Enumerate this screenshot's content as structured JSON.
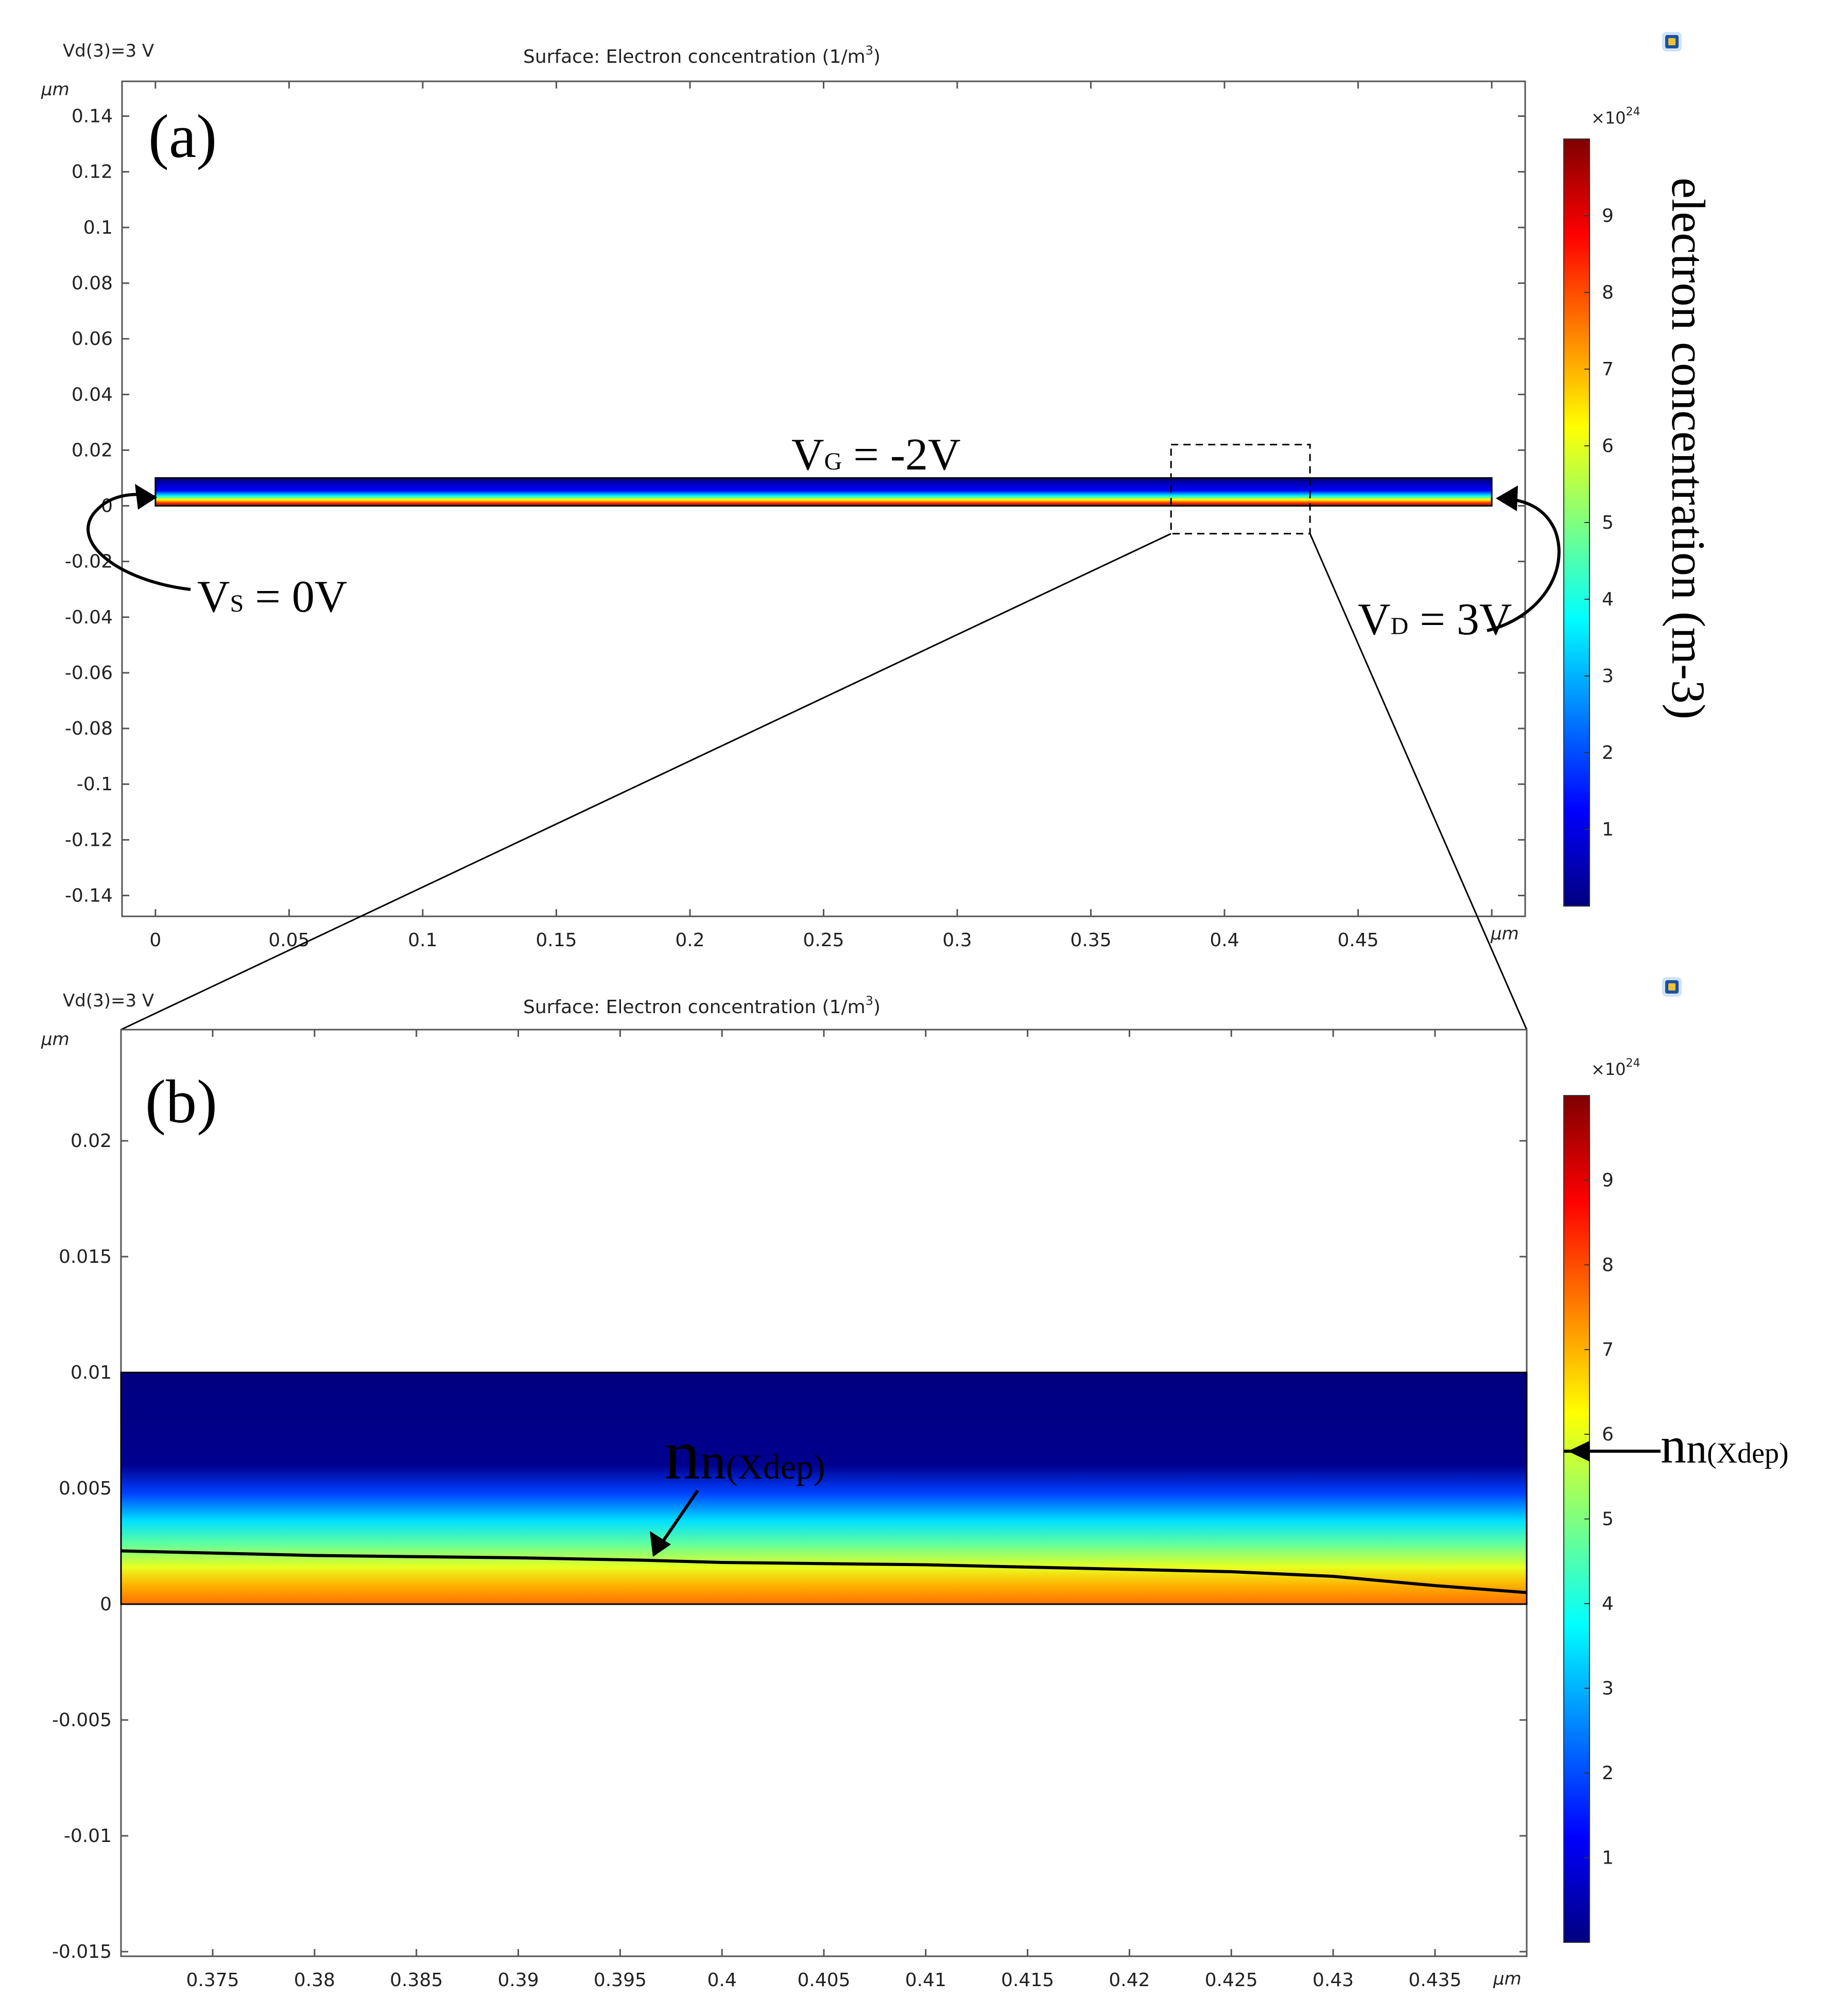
{
  "colors": {
    "jet": [
      "#00007f",
      "#0000ff",
      "#007fff",
      "#00ffff",
      "#7fff7f",
      "#ffff00",
      "#ff7f00",
      "#ff0000",
      "#7f0000"
    ],
    "axis": "#555555",
    "text": "#222222",
    "annotation": "#000000"
  },
  "chart_data": [
    {
      "id": "a",
      "type": "heatmap",
      "panel_label": "(a)",
      "param_label": "Vd(3)=3 V",
      "title": "Surface: Electron concentration (1/m",
      "title_sup": "3",
      "title_end": ")",
      "xlabel": "μm",
      "ylabel": "μm",
      "xlim": [
        -0.0125,
        0.5125
      ],
      "ylim": [
        -0.1475,
        0.1525
      ],
      "xticks": [
        0,
        0.05,
        0.1,
        0.15,
        0.2,
        0.25,
        0.3,
        0.35,
        0.4,
        0.45,
        0.5
      ],
      "xtick_labels": [
        "0",
        "0.05",
        "0.1",
        "0.15",
        "0.2",
        "0.25",
        "0.3",
        "0.35",
        "0.4",
        "0.45",
        ""
      ],
      "yticks": [
        -0.14,
        -0.12,
        -0.1,
        -0.08,
        -0.06,
        -0.04,
        -0.02,
        0,
        0.02,
        0.04,
        0.06,
        0.08,
        0.1,
        0.12,
        0.14
      ],
      "ytick_labels": [
        "-0.14",
        "-0.12",
        "-0.1",
        "-0.08",
        "-0.06",
        "-0.04",
        "-0.02",
        "0",
        "0.02",
        "0.04",
        "0.06",
        "0.08",
        "0.1",
        "0.12",
        "0.14"
      ],
      "device": {
        "x": [
          0,
          0.5
        ],
        "y": [
          0,
          0.01
        ]
      },
      "colorbar": {
        "range": [
          0,
          1e+25
        ],
        "multiplier_base": "×10",
        "multiplier_exp": "24",
        "ticks": [
          1,
          2,
          3,
          4,
          5,
          6,
          7,
          8,
          9
        ],
        "tick_labels": [
          "1",
          "2",
          "3",
          "4",
          "5",
          "6",
          "7",
          "8",
          "9"
        ],
        "title": "electron concentration (m-3)"
      },
      "annotations": {
        "vg": {
          "base": "V",
          "sub": "G",
          "rest": " = -2V"
        },
        "vs": {
          "base": "V",
          "sub": "S",
          "rest": " = 0V"
        },
        "vd": {
          "base": "V",
          "sub": "D",
          "rest": " = 3V"
        }
      },
      "zoom_box": {
        "x": [
          0.38,
          0.432
        ],
        "y": [
          -0.01,
          0.022
        ]
      }
    },
    {
      "id": "b",
      "type": "heatmap",
      "panel_label": "(b)",
      "param_label": "Vd(3)=3 V",
      "title": "Surface: Electron concentration (1/m",
      "title_sup": "3",
      "title_end": ")",
      "xlabel": "μm",
      "ylabel": "μm",
      "xlim": [
        0.3705,
        0.4395
      ],
      "ylim": [
        -0.0152,
        0.0248
      ],
      "xticks": [
        0.375,
        0.38,
        0.385,
        0.39,
        0.395,
        0.4,
        0.405,
        0.41,
        0.415,
        0.42,
        0.425,
        0.43,
        0.435
      ],
      "xtick_labels": [
        "0.375",
        "0.38",
        "0.385",
        "0.39",
        "0.395",
        "0.4",
        "0.405",
        "0.41",
        "0.415",
        "0.42",
        "0.425",
        "0.43",
        "0.435"
      ],
      "yticks": [
        -0.015,
        -0.01,
        -0.005,
        0,
        0.005,
        0.01,
        0.015,
        0.02
      ],
      "ytick_labels": [
        "-0.015",
        "-0.01",
        "-0.005",
        "0",
        "0.005",
        "0.01",
        "0.015",
        "0.02"
      ],
      "device": {
        "x": [
          0.3705,
          0.4395
        ],
        "y": [
          0,
          0.01
        ]
      },
      "colorbar": {
        "range": [
          0,
          1e+25
        ],
        "multiplier_base": "×10",
        "multiplier_exp": "24",
        "ticks": [
          1,
          2,
          3,
          4,
          5,
          6,
          7,
          8,
          9
        ],
        "tick_labels": [
          "1",
          "2",
          "3",
          "4",
          "5",
          "6",
          "7",
          "8",
          "9"
        ],
        "marker_value": 5.8
      },
      "contour_line": {
        "x": [
          0.3705,
          0.38,
          0.39,
          0.396,
          0.4,
          0.41,
          0.42,
          0.425,
          0.43,
          0.435,
          0.4395
        ],
        "y": [
          0.0023,
          0.0021,
          0.002,
          0.0019,
          0.0018,
          0.0017,
          0.0015,
          0.0014,
          0.0012,
          0.0008,
          0.0005
        ]
      },
      "annotations": {
        "nn": {
          "base": "n",
          "mid": "n",
          "sub": "(Xdep)"
        }
      }
    }
  ]
}
